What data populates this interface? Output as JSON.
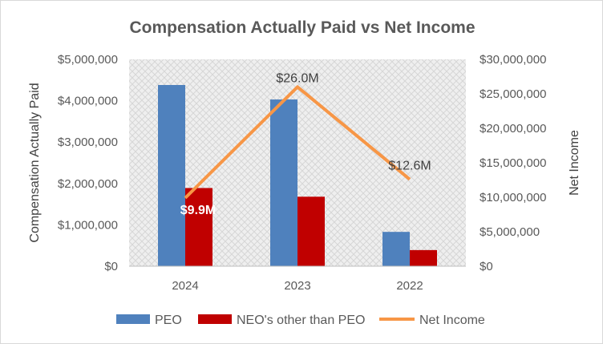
{
  "chart_data": {
    "type": "bar",
    "title": "Compensation  Actually Paid vs Net Income",
    "categories": [
      "2024",
      "2023",
      "2022"
    ],
    "series": [
      {
        "name": "PEO",
        "type": "bar",
        "axis": "left",
        "color": "#4F81BD",
        "values": [
          4380000,
          4030000,
          830000
        ]
      },
      {
        "name": "NEO's other than PEO",
        "type": "bar",
        "axis": "left",
        "color": "#C00000",
        "values": [
          1890000,
          1680000,
          390000
        ]
      },
      {
        "name": "Net Income",
        "type": "line",
        "axis": "right",
        "color": "#F79646",
        "values": [
          9900000,
          26000000,
          12600000
        ]
      }
    ],
    "data_labels": [
      "$9.9M",
      "$26.0M",
      "$12.6M"
    ],
    "ylabel": "Compensation Actually Paid",
    "y2label": "Net Income",
    "ylim": [
      0,
      5000000
    ],
    "y2lim": [
      0,
      30000000
    ],
    "yticks": [
      "$0",
      "$1,000,000",
      "$2,000,000",
      "$3,000,000",
      "$4,000,000",
      "$5,000,000"
    ],
    "y2ticks": [
      "$0",
      "$5,000,000",
      "$10,000,000",
      "$15,000,000",
      "$20,000,000",
      "$25,000,000",
      "$30,000,000"
    ],
    "legend": [
      "PEO",
      "NEO's other than PEO",
      "Net Income"
    ],
    "legend_position": "bottom"
  }
}
